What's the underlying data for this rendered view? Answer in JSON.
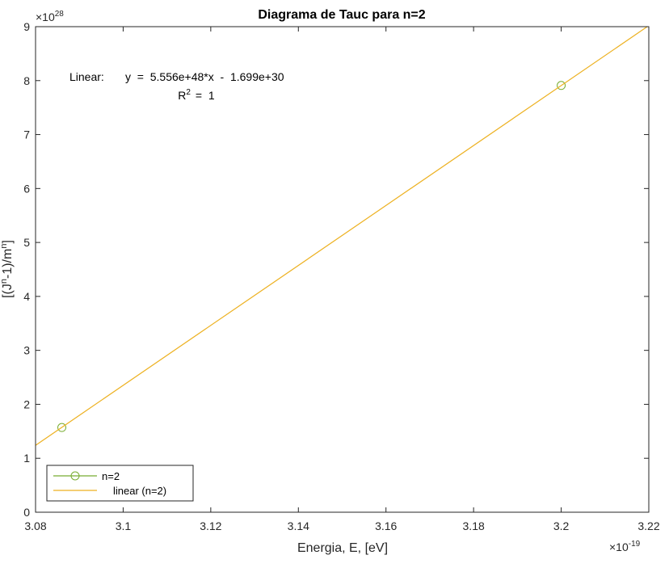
{
  "chart_data": {
    "type": "scatter",
    "title": "Diagrama de Tauc para n=2",
    "xlabel": "Energia, E, [eV]",
    "ylabel": "[(J^n-1)/m^n]",
    "x_scale_label": "×10",
    "x_scale_exp": "-19",
    "y_scale_label": "×10",
    "y_scale_exp": "28",
    "xlim": [
      3.08,
      3.22
    ],
    "ylim": [
      0,
      9
    ],
    "x_ticks": [
      3.08,
      3.1,
      3.12,
      3.14,
      3.16,
      3.18,
      3.2,
      3.22
    ],
    "x_tick_labels": [
      "3.08",
      "3.1",
      "3.12",
      "3.14",
      "3.16",
      "3.18",
      "3.2",
      "3.22"
    ],
    "y_ticks": [
      0,
      1,
      2,
      3,
      4,
      5,
      6,
      7,
      8,
      9
    ],
    "y_tick_labels": [
      "0",
      "1",
      "2",
      "3",
      "4",
      "5",
      "6",
      "7",
      "8",
      "9"
    ],
    "series": [
      {
        "name": "n=2",
        "kind": "markers",
        "marker": "circle",
        "color": "#77ac30",
        "x": [
          3.086,
          3.2
        ],
        "y": [
          1.57,
          7.91
        ]
      },
      {
        "name": "linear (n=2)",
        "kind": "line",
        "color": "#edb120",
        "x": [
          3.08,
          3.22
        ],
        "y": [
          1.24,
          9.02
        ]
      }
    ],
    "annotation": {
      "fit_type": "Linear:",
      "equation": "y  =  5.556e+48*x  -  1.699e+30",
      "r2_label": "R",
      "r2_exp": "2",
      "r2_value": "=  1"
    },
    "legend": {
      "position": "bottom-left",
      "entries": [
        "n=2",
        "linear (n=2)"
      ]
    },
    "grid": false
  }
}
